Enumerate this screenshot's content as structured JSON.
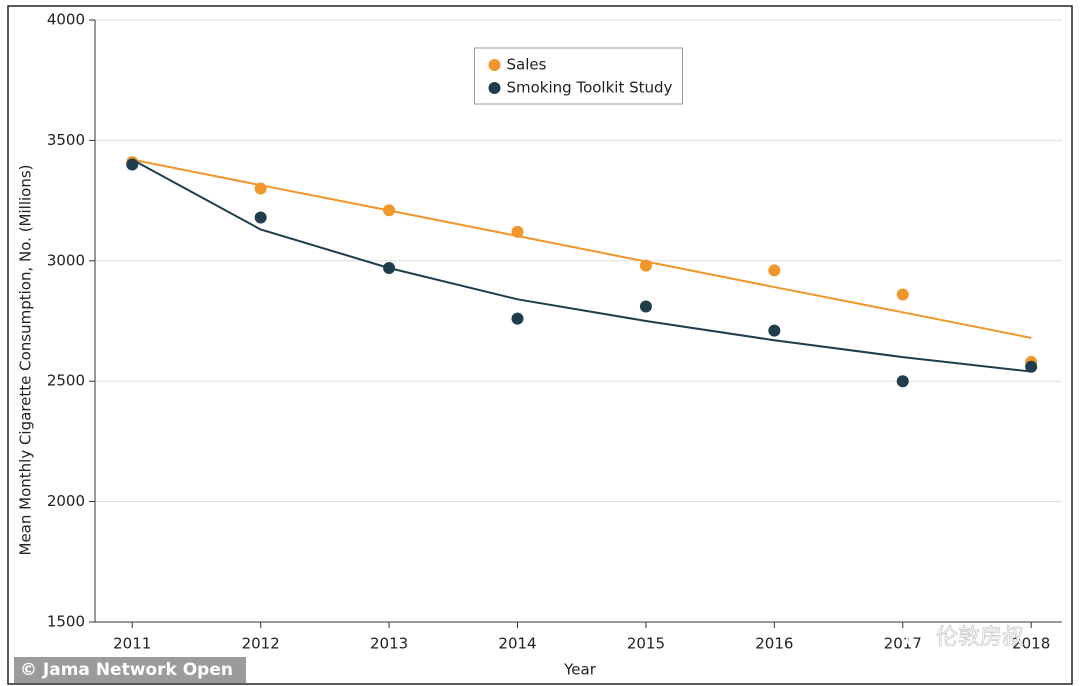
{
  "chart_data": {
    "type": "scatter",
    "x_label": "Year",
    "y_label": "Mean Monthly Cigarette Consumption, No. (Millions)",
    "x": [
      2011,
      2012,
      2013,
      2014,
      2015,
      2016,
      2017,
      2018
    ],
    "series": [
      {
        "name": "Sales",
        "color": "#f0962a",
        "values": [
          3410,
          3300,
          3210,
          3120,
          2980,
          2960,
          2860,
          2580
        ],
        "fit": [
          3420,
          3314,
          3209,
          3103,
          2997,
          2891,
          2786,
          2680
        ]
      },
      {
        "name": "Smoking Toolkit Study",
        "color": "#1f3d4c",
        "values": [
          3400,
          3180,
          2970,
          2760,
          2810,
          2710,
          2500,
          2560
        ],
        "fit": [
          3420,
          3130,
          2970,
          2840,
          2750,
          2670,
          2600,
          2540
        ]
      }
    ],
    "xlim": [
      2010.71,
      2018.24
    ],
    "xticks": [
      2011,
      2012,
      2013,
      2014,
      2015,
      2016,
      2017,
      2018
    ],
    "ylim": [
      1500,
      4000
    ],
    "yticks": [
      1500,
      2000,
      2500,
      3000,
      3500,
      4000
    ],
    "grid": true,
    "legend_loc": "upper center"
  },
  "watermarks": {
    "credit": "© Jama Network Open",
    "account": "伦敦房叔"
  }
}
